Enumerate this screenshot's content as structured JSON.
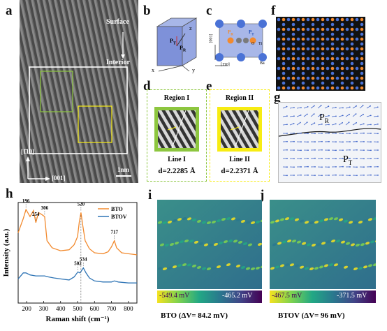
{
  "panels": {
    "a": "a",
    "b": "b",
    "c": "c",
    "d": "d",
    "e": "e",
    "f": "f",
    "g": "g",
    "h": "h",
    "i": "i",
    "j": "j"
  },
  "panel_a": {
    "surface": "Surface",
    "interior": "Interior",
    "dir1": "[1̄10]",
    "dir2": "[001]",
    "scale": "1nm"
  },
  "panel_b": {
    "pt": "P",
    "pt_sub": "T",
    "pr": "P",
    "pr_sub": "R",
    "x": "x",
    "y": "y",
    "z": "z"
  },
  "panel_c": {
    "dir_v": "[001]",
    "dir_h": "[1̄10]",
    "pr": "P",
    "pr_sub": "R",
    "pt": "P",
    "pt_sub": "T",
    "o": "O",
    "ti": "Ti",
    "ba": "Ba"
  },
  "panel_d": {
    "region": "Region I",
    "line": "Line I",
    "d_value": "d=2.2285 Å"
  },
  "panel_e": {
    "region": "Region II",
    "line": "Line II",
    "d_value": "d=2.2371 Å"
  },
  "panel_g": {
    "pr": "P",
    "pr_sub": "R",
    "pt": "P",
    "pt_sub": "T"
  },
  "chart_data": {
    "type": "line",
    "xlabel": "Raman shift (cm⁻¹)",
    "ylabel": "Intensity (a.u.)",
    "xlim": [
      150,
      850
    ],
    "x_ticks": [
      200,
      300,
      400,
      500,
      600,
      700,
      800
    ],
    "series": [
      {
        "name": "BTO",
        "color": "#f28a2e",
        "x": [
          150,
          180,
          196,
          220,
          240,
          254,
          270,
          290,
          306,
          320,
          350,
          400,
          450,
          480,
          500,
          510,
          520,
          530,
          545,
          570,
          600,
          650,
          680,
          700,
          717,
          730,
          760,
          800,
          850
        ],
        "y": [
          0.7,
          0.84,
          0.93,
          0.86,
          0.92,
          0.8,
          0.9,
          0.88,
          0.86,
          0.62,
          0.55,
          0.52,
          0.53,
          0.58,
          0.66,
          0.8,
          0.9,
          0.78,
          0.62,
          0.54,
          0.5,
          0.49,
          0.51,
          0.56,
          0.62,
          0.55,
          0.5,
          0.49,
          0.48
        ]
      },
      {
        "name": "BTOV",
        "color": "#2e74b5",
        "x": [
          150,
          180,
          196,
          220,
          254,
          280,
          306,
          330,
          360,
          400,
          450,
          480,
          502,
          515,
          534,
          550,
          570,
          600,
          650,
          700,
          717,
          740,
          800,
          850
        ],
        "y": [
          0.24,
          0.3,
          0.3,
          0.28,
          0.27,
          0.27,
          0.27,
          0.26,
          0.25,
          0.24,
          0.23,
          0.26,
          0.31,
          0.3,
          0.35,
          0.3,
          0.25,
          0.22,
          0.21,
          0.21,
          0.22,
          0.21,
          0.2,
          0.2
        ]
      }
    ],
    "peaks": [
      {
        "label": "196",
        "x": 196,
        "series": "BTO"
      },
      {
        "label": "254",
        "x": 254,
        "series": "BTO"
      },
      {
        "label": "306",
        "x": 306,
        "series": "BTO"
      },
      {
        "label": "520",
        "x": 520,
        "series": "BTO"
      },
      {
        "label": "717",
        "x": 717,
        "series": "BTO"
      },
      {
        "label": "502",
        "x": 502,
        "series": "BTOV"
      },
      {
        "label": "534",
        "x": 534,
        "series": "BTOV"
      }
    ],
    "legend_position": "top-right"
  },
  "panel_i": {
    "min_label": "-549.4 mV",
    "max_label": "-465.2 mV",
    "caption": "BTO (ΔV= 84.2 mV)"
  },
  "panel_j": {
    "min_label": "-467.5 mV",
    "max_label": "-371.5 mV",
    "caption": "BTOV (ΔV= 96 mV)"
  },
  "colors": {
    "orange": "#f28a2e",
    "blue": "#2e74b5",
    "green_box": "#8dc63f",
    "yellow_box": "#f7ec13"
  }
}
